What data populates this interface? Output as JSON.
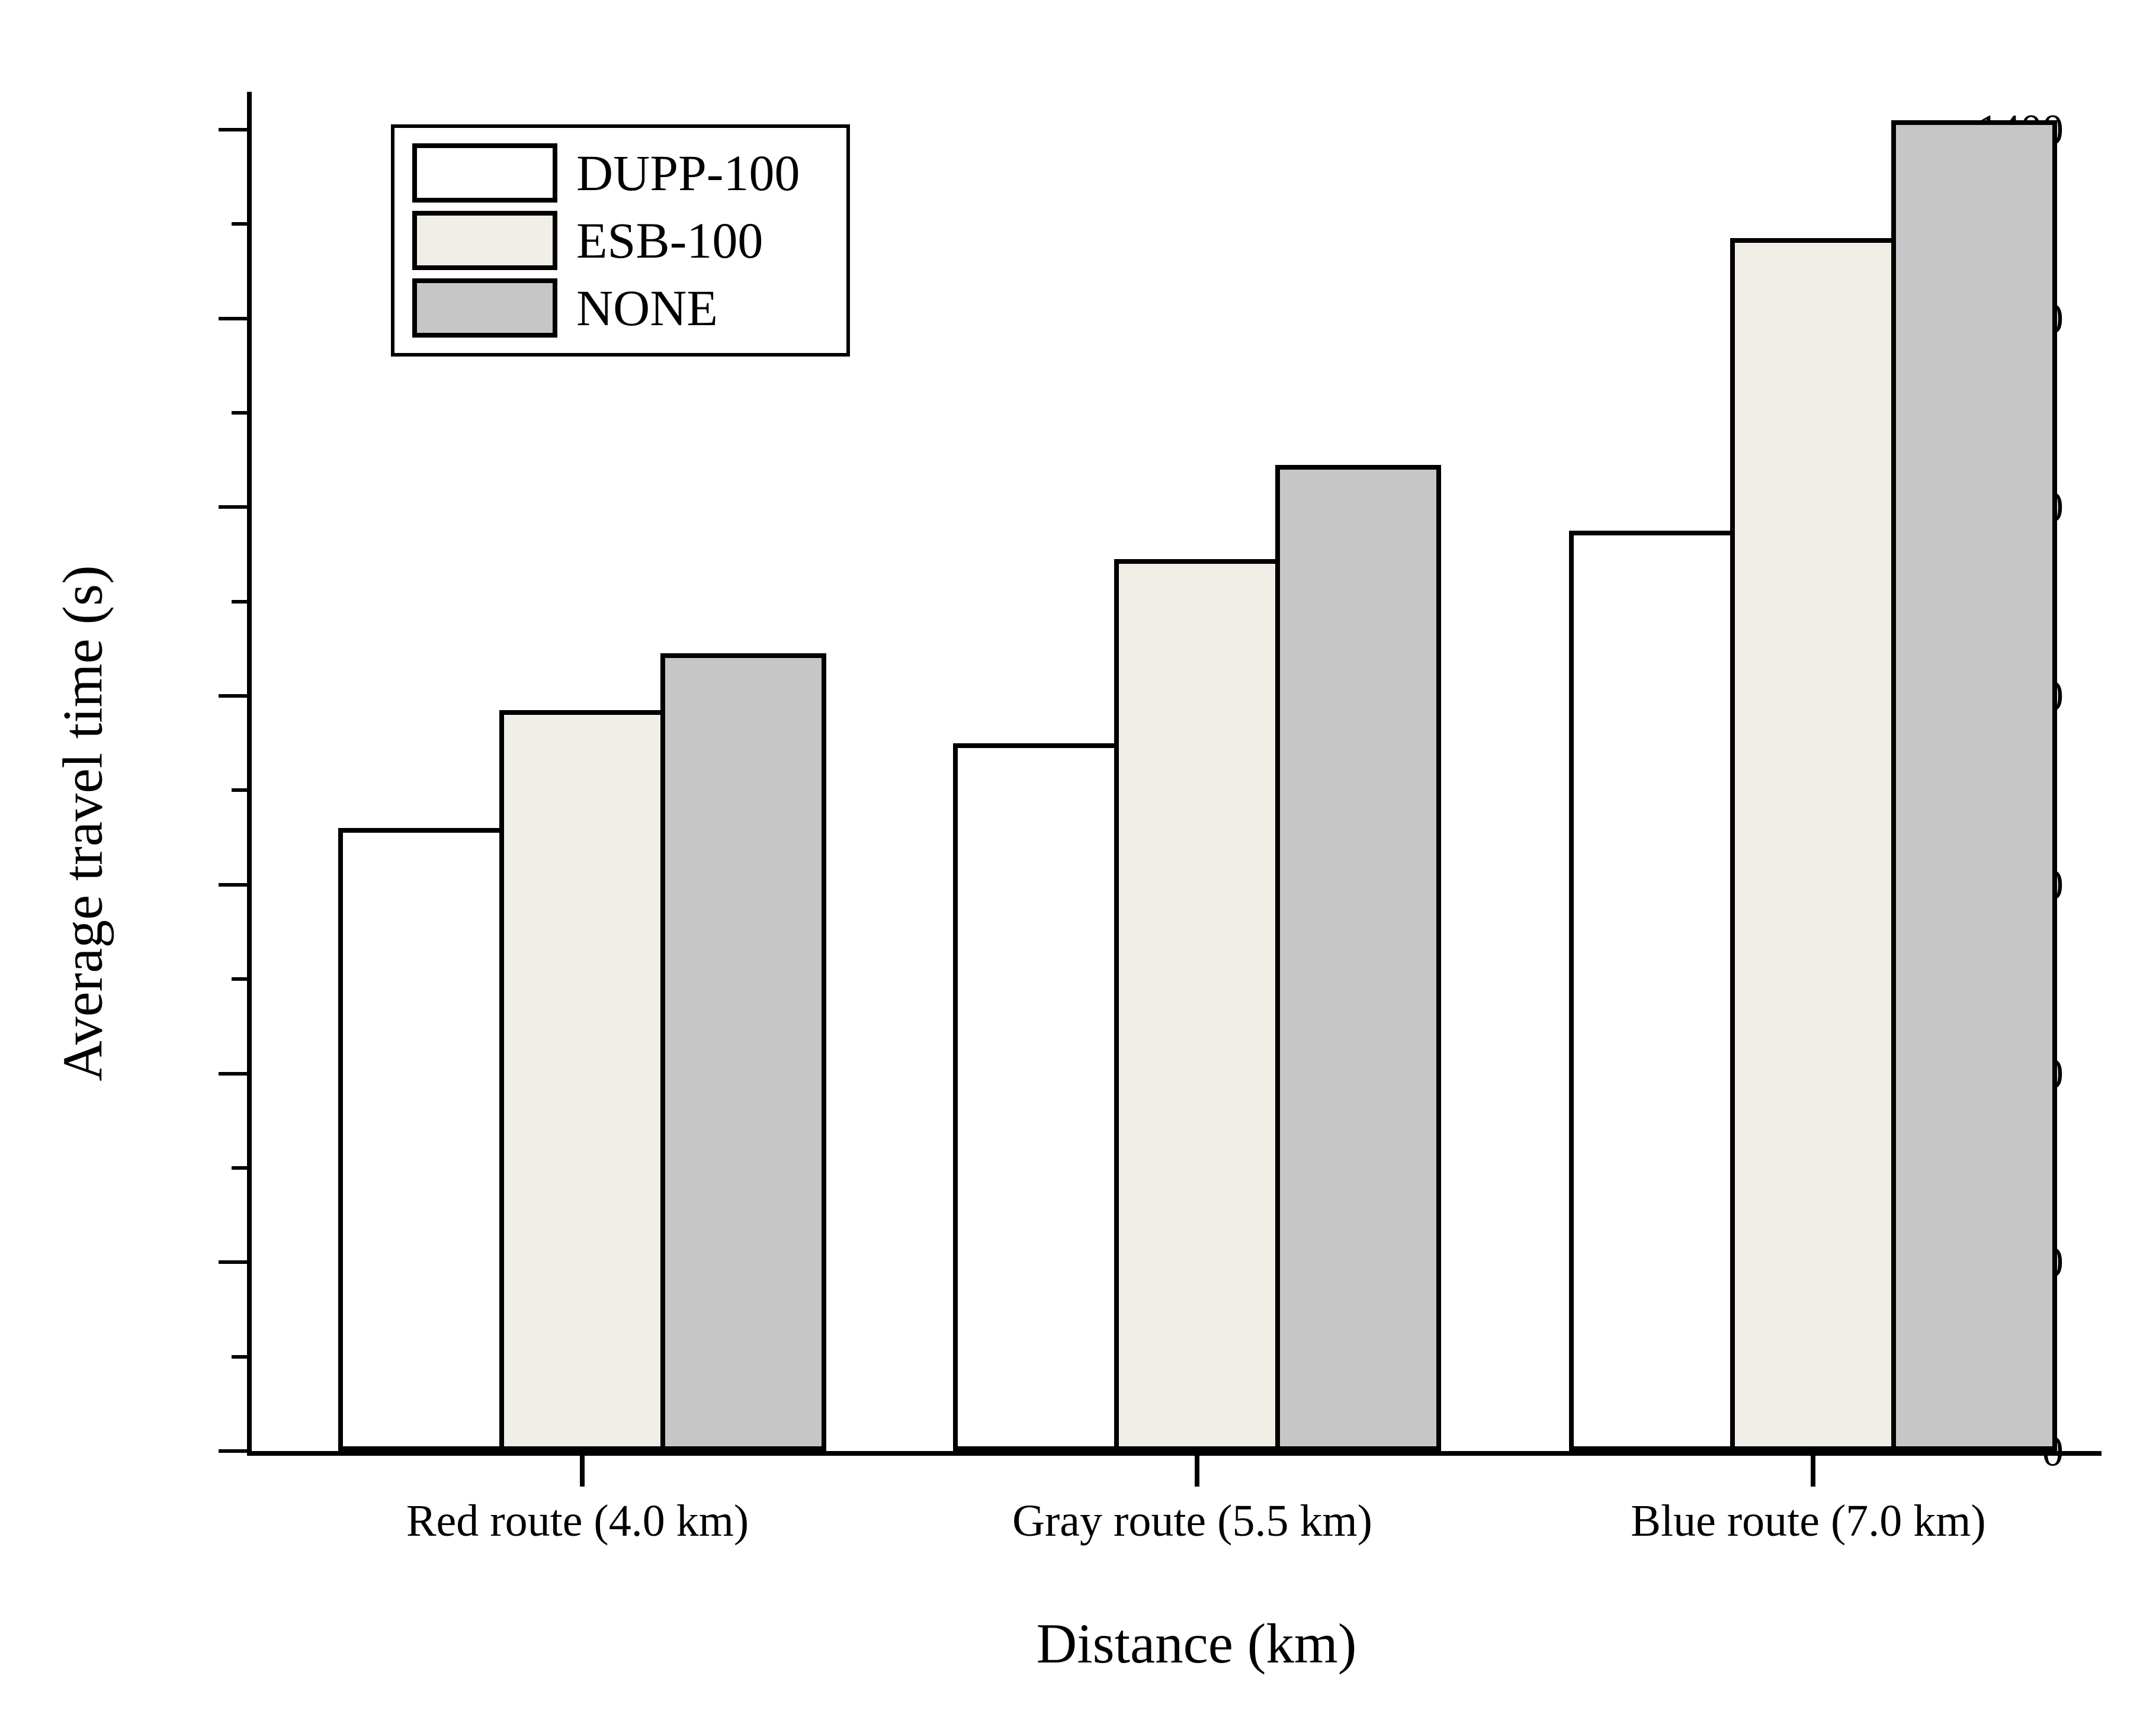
{
  "chart_data": {
    "type": "bar",
    "title": "",
    "xlabel": "Distance (km)",
    "ylabel": "Average travel time (s)",
    "categories": [
      "Red route (4.0 km)",
      "Gray route (5.5 km)",
      "Blue route (7.0 km)"
    ],
    "series": [
      {
        "name": "DUPP-100",
        "color": "#ffffff",
        "values": [
          660,
          750,
          975
        ]
      },
      {
        "name": "ESB-100",
        "color": "#f0eee6",
        "values": [
          785,
          945,
          1285
        ]
      },
      {
        "name": "NONE",
        "color": "#c6c6c6",
        "values": [
          845,
          1045,
          1410
        ]
      }
    ],
    "ylim": [
      0,
      1440
    ],
    "yticks_major": [
      0,
      200,
      400,
      600,
      800,
      1000,
      1200,
      1400
    ],
    "yticks_minor": [
      100,
      300,
      500,
      700,
      900,
      1100,
      1300
    ],
    "grid": false,
    "legend_position": "top-left",
    "axis_color": "#000000",
    "bar_border_color": "#000000"
  }
}
